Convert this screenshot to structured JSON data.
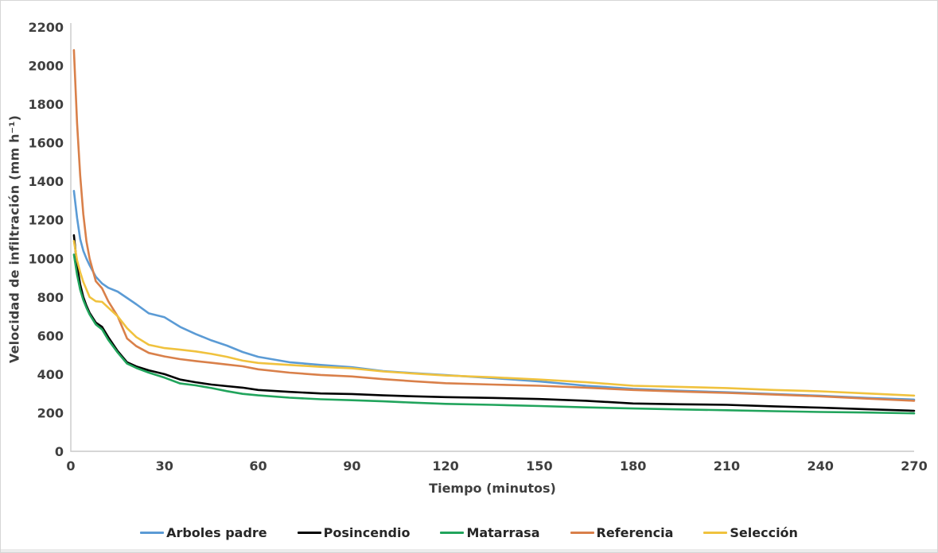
{
  "figure": {
    "background": "#ffffff",
    "border_color": "#d6d6d6",
    "text_color": "#3f3f3f",
    "axis_line_color": "#c9c9c9"
  },
  "chart_data": {
    "type": "line",
    "title": "",
    "xlabel": "Tiempo (minutos)",
    "ylabel": "Velocidad de infiltración (mm h⁻¹)",
    "xlim": [
      0,
      270
    ],
    "ylim": [
      0,
      2200
    ],
    "x_ticks": [
      0,
      30,
      60,
      90,
      120,
      150,
      180,
      210,
      240,
      270
    ],
    "y_ticks": [
      0,
      200,
      400,
      600,
      800,
      1000,
      1200,
      1400,
      1600,
      1800,
      2000,
      2200
    ],
    "grid": false,
    "legend_position": "bottom-center",
    "x": [
      1,
      2,
      3,
      4,
      5,
      6,
      8,
      10,
      12,
      15,
      18,
      21,
      25,
      30,
      35,
      40,
      45,
      50,
      55,
      60,
      70,
      80,
      90,
      100,
      110,
      120,
      135,
      150,
      165,
      180,
      195,
      210,
      225,
      240,
      255,
      270
    ],
    "series": [
      {
        "name": "Arboles padre",
        "color": "#5b9bd5",
        "values": [
          1350,
          1210,
          1100,
          1040,
          1000,
          965,
          905,
          870,
          848,
          828,
          795,
          762,
          715,
          695,
          645,
          608,
          575,
          548,
          515,
          490,
          462,
          448,
          436,
          416,
          405,
          395,
          380,
          362,
          340,
          324,
          314,
          306,
          297,
          288,
          277,
          268
        ]
      },
      {
        "name": "Posincendio",
        "color": "#000000",
        "values": [
          1120,
          960,
          865,
          800,
          755,
          718,
          668,
          645,
          592,
          520,
          462,
          440,
          420,
          400,
          372,
          358,
          346,
          338,
          330,
          318,
          308,
          300,
          297,
          290,
          285,
          281,
          277,
          271,
          262,
          248,
          244,
          241,
          233,
          226,
          218,
          210
        ]
      },
      {
        "name": "Matarrasa",
        "color": "#21a45c",
        "values": [
          1020,
          915,
          838,
          785,
          745,
          710,
          658,
          632,
          578,
          512,
          455,
          432,
          408,
          382,
          352,
          342,
          328,
          312,
          298,
          290,
          278,
          270,
          265,
          259,
          252,
          246,
          241,
          235,
          228,
          222,
          217,
          213,
          208,
          204,
          201,
          197
        ]
      },
      {
        "name": "Referencia",
        "color": "#d9804a",
        "values": [
          2080,
          1700,
          1430,
          1230,
          1090,
          1000,
          882,
          845,
          778,
          700,
          585,
          545,
          510,
          492,
          478,
          468,
          459,
          450,
          441,
          425,
          408,
          396,
          388,
          374,
          363,
          353,
          346,
          340,
          330,
          318,
          310,
          303,
          294,
          285,
          273,
          262
        ]
      },
      {
        "name": "Selección",
        "color": "#f0c23e",
        "values": [
          1090,
          990,
          928,
          878,
          840,
          800,
          778,
          775,
          745,
          700,
          638,
          592,
          552,
          535,
          527,
          518,
          505,
          490,
          470,
          458,
          448,
          438,
          430,
          414,
          403,
          393,
          384,
          372,
          358,
          340,
          334,
          328,
          318,
          311,
          300,
          289
        ]
      }
    ]
  }
}
